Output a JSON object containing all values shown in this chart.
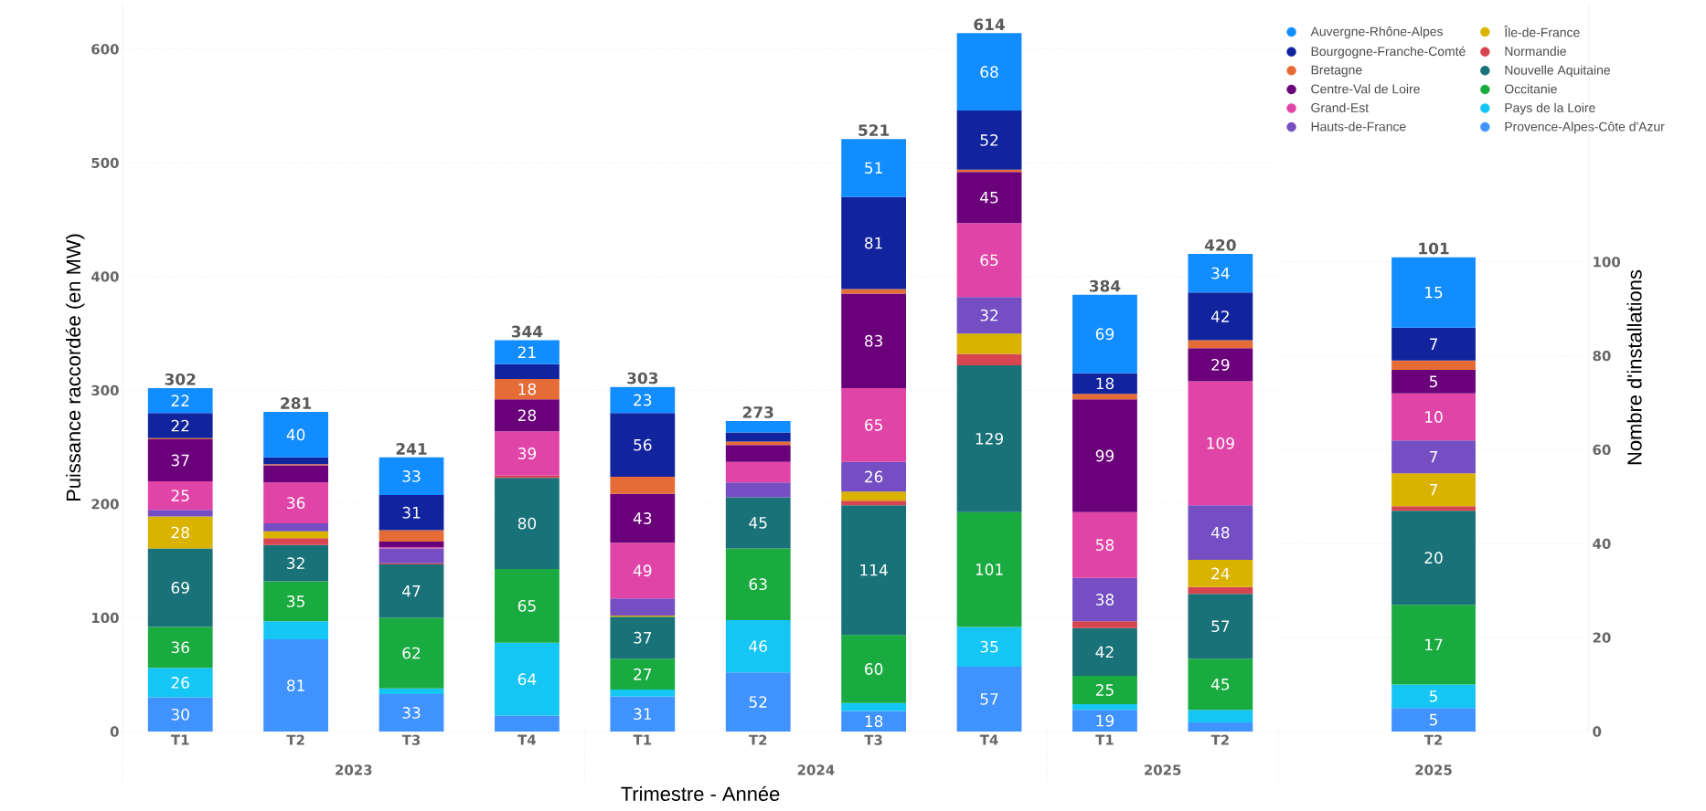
{
  "chart_data": [
    {
      "type": "bar",
      "stacked": true,
      "xlabel": "Trimestre - Année",
      "ylabel": "Puissance raccordée (en MW)",
      "categories": [
        "T1",
        "T2",
        "T3",
        "T4",
        "T1",
        "T2",
        "T3",
        "T4",
        "T1",
        "T2"
      ],
      "annotations": [
        "2023",
        "2024",
        "2025"
      ],
      "ylim": [
        0,
        640
      ],
      "yticks": [
        0,
        100,
        200,
        300,
        400,
        500,
        600
      ],
      "grid": "y",
      "legend": "top right",
      "totals": [
        "302",
        "281",
        "241",
        "344",
        "303",
        "273",
        "521",
        "614",
        "384",
        "420"
      ],
      "series": [
        {
          "name": "Provence-Alpes-Côte d'Azur",
          "color": "#4092ff",
          "values": [
            30,
            81,
            33,
            14,
            31,
            52,
            18,
            57,
            19,
            8
          ],
          "value_labels": [
            "30",
            "81",
            "33",
            null,
            "31",
            "52",
            "18",
            "57",
            "19",
            null
          ]
        },
        {
          "name": "Pays de la Loire",
          "color": "#15c6f4",
          "values": [
            26,
            16,
            5,
            64,
            6,
            46,
            7,
            35,
            5,
            11
          ],
          "value_labels": [
            "26",
            null,
            null,
            "64",
            null,
            "46",
            null,
            "35",
            null,
            null
          ]
        },
        {
          "name": "Occitanie",
          "color": "#1aab40",
          "values": [
            36,
            35,
            62,
            65,
            27,
            63,
            60,
            101,
            25,
            45
          ],
          "value_labels": [
            "36",
            "35",
            "62",
            "65",
            "27",
            "63",
            "60",
            "101",
            "25",
            "45"
          ]
        },
        {
          "name": "Nouvelle Aquitaine",
          "color": "#197278",
          "values": [
            69,
            32,
            47,
            80,
            37,
            45,
            114,
            129,
            42,
            57
          ],
          "value_labels": [
            "69",
            "32",
            "47",
            "80",
            "37",
            "45",
            "114",
            "129",
            "42",
            "57"
          ]
        },
        {
          "name": "Normandie",
          "color": "#d64550",
          "values": [
            null,
            6,
            1,
            2,
            null,
            null,
            4,
            10,
            6,
            6
          ]
        },
        {
          "name": "Île-de-France",
          "color": "#d9b300",
          "values": [
            28,
            6,
            null,
            null,
            1,
            null,
            8,
            18,
            null,
            24
          ],
          "value_labels": [
            "28",
            null,
            null,
            null,
            null,
            null,
            null,
            null,
            null,
            "24"
          ]
        },
        {
          "name": "Hauts-de-France",
          "color": "#744ec2",
          "values": [
            6,
            7,
            13,
            null,
            15,
            13,
            26,
            32,
            38,
            48
          ],
          "value_labels": [
            null,
            null,
            null,
            null,
            null,
            null,
            "26",
            "32",
            "38",
            "48"
          ]
        },
        {
          "name": "Grand-Est",
          "color": "#e044a7",
          "values": [
            25,
            36,
            1,
            39,
            49,
            18,
            65,
            65,
            58,
            109
          ],
          "value_labels": [
            "25",
            "36",
            null,
            "39",
            "49",
            null,
            "65",
            "65",
            "58",
            "109"
          ]
        },
        {
          "name": "Centre-Val de Loire",
          "color": "#6b007b",
          "values": [
            37,
            15,
            5,
            28,
            43,
            15,
            83,
            45,
            99,
            29
          ],
          "value_labels": [
            "37",
            null,
            null,
            "28",
            "43",
            null,
            "83",
            "45",
            "99",
            "29"
          ]
        },
        {
          "name": "Bretagne",
          "color": "#e66c37",
          "values": [
            1,
            1,
            10,
            18,
            15,
            3,
            4,
            2,
            5,
            7
          ],
          "value_labels": [
            null,
            null,
            null,
            "18",
            null,
            null,
            null,
            null,
            null,
            null
          ]
        },
        {
          "name": "Bourgogne-Franche-Comté",
          "color": "#12239e",
          "values": [
            22,
            6,
            31,
            13,
            56,
            8,
            81,
            52,
            18,
            42
          ],
          "value_labels": [
            "22",
            null,
            "31",
            null,
            "56",
            null,
            "81",
            "52",
            "18",
            "42"
          ]
        },
        {
          "name": "Auvergne-Rhône-Alpes",
          "color": "#118dff",
          "values": [
            22,
            40,
            33,
            21,
            23,
            10,
            51,
            68,
            69,
            34
          ],
          "value_labels": [
            "22",
            "40",
            "33",
            "21",
            "23",
            null,
            "51",
            "68",
            "69",
            "34"
          ]
        }
      ]
    },
    {
      "type": "bar",
      "stacked": true,
      "ylabel": "Nombre d'installations",
      "categories": [
        "T2"
      ],
      "annotations": [
        "2025"
      ],
      "ylim": [
        0,
        155
      ],
      "yticks": [
        0,
        20,
        40,
        60,
        80,
        100
      ],
      "grid": "y",
      "totals": [
        "101"
      ],
      "series": [
        {
          "color": "#4092ff",
          "values": [
            5
          ],
          "value_labels": [
            "5"
          ]
        },
        {
          "color": "#15c6f4",
          "values": [
            5
          ],
          "value_labels": [
            "5"
          ]
        },
        {
          "color": "#1aab40",
          "values": [
            17
          ],
          "value_labels": [
            "17"
          ]
        },
        {
          "color": "#197278",
          "values": [
            20
          ],
          "value_labels": [
            "20"
          ]
        },
        {
          "color": "#d64550",
          "values": [
            1
          ]
        },
        {
          "color": "#d9b300",
          "values": [
            7
          ],
          "value_labels": [
            "7"
          ]
        },
        {
          "color": "#744ec2",
          "values": [
            7
          ],
          "value_labels": [
            "7"
          ]
        },
        {
          "color": "#e044a7",
          "values": [
            10
          ],
          "value_labels": [
            "10"
          ]
        },
        {
          "color": "#6b007b",
          "values": [
            5
          ],
          "value_labels": [
            "5"
          ]
        },
        {
          "color": "#e66c37",
          "values": [
            2
          ]
        },
        {
          "color": "#12239e",
          "values": [
            7
          ],
          "value_labels": [
            "7"
          ]
        },
        {
          "color": "#118dff",
          "values": [
            15
          ],
          "value_labels": [
            "15"
          ]
        }
      ]
    }
  ]
}
